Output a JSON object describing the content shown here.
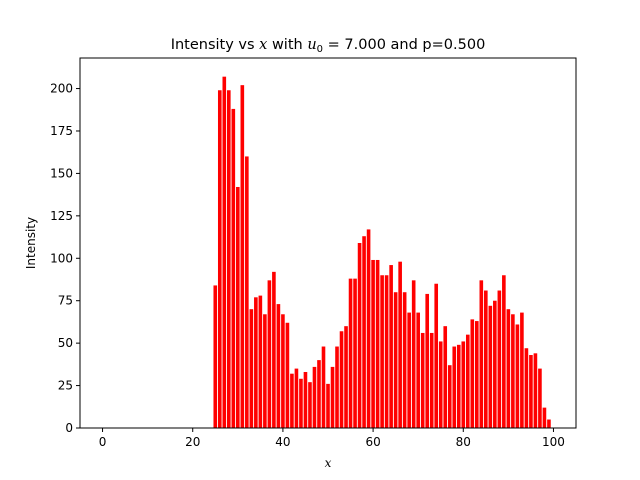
{
  "chart_data": {
    "type": "bar",
    "title": {
      "prefix": "Intensity vs ",
      "var": "x",
      "middle": " with ",
      "param_symbol": "u",
      "param_sub": "0",
      "param_eq": " = 7.000",
      "suffix": " and p=0.500"
    },
    "xlabel": "x",
    "ylabel": "Intensity",
    "xlim": [
      -5,
      105
    ],
    "ylim": [
      0,
      218
    ],
    "xticks": [
      0,
      20,
      40,
      60,
      80,
      100
    ],
    "yticks": [
      0,
      25,
      50,
      75,
      100,
      125,
      150,
      175,
      200
    ],
    "bar_color": "#ff0000",
    "bar_width": 0.8,
    "x": [
      0,
      1,
      2,
      3,
      4,
      5,
      6,
      7,
      8,
      9,
      10,
      11,
      12,
      13,
      14,
      15,
      16,
      17,
      18,
      19,
      20,
      21,
      22,
      23,
      24,
      25,
      26,
      27,
      28,
      29,
      30,
      31,
      32,
      33,
      34,
      35,
      36,
      37,
      38,
      39,
      40,
      41,
      42,
      43,
      44,
      45,
      46,
      47,
      48,
      49,
      50,
      51,
      52,
      53,
      54,
      55,
      56,
      57,
      58,
      59,
      60,
      61,
      62,
      63,
      64,
      65,
      66,
      67,
      68,
      69,
      70,
      71,
      72,
      73,
      74,
      75,
      76,
      77,
      78,
      79,
      80,
      81,
      82,
      83,
      84,
      85,
      86,
      87,
      88,
      89,
      90,
      91,
      92,
      93,
      94,
      95,
      96,
      97,
      98,
      99,
      100
    ],
    "values": [
      0,
      0,
      0,
      0,
      0,
      0,
      0,
      0,
      0,
      0,
      0,
      0,
      0,
      0,
      0,
      0,
      0,
      0,
      0,
      0,
      0,
      0,
      0,
      0,
      0,
      84,
      199,
      207,
      199,
      188,
      142,
      202,
      160,
      70,
      77,
      78,
      67,
      87,
      92,
      73,
      67,
      62,
      32,
      35,
      29,
      33,
      27,
      36,
      40,
      48,
      26,
      36,
      48,
      57,
      60,
      88,
      88,
      109,
      113,
      117,
      99,
      99,
      90,
      90,
      96,
      80,
      98,
      80,
      68,
      87,
      68,
      56,
      79,
      56,
      85,
      51,
      60,
      37,
      48,
      49,
      51,
      55,
      64,
      63,
      87,
      81,
      72,
      75,
      81,
      90,
      70,
      67,
      61,
      68,
      47,
      43,
      44,
      35,
      12,
      5,
      0
    ]
  }
}
